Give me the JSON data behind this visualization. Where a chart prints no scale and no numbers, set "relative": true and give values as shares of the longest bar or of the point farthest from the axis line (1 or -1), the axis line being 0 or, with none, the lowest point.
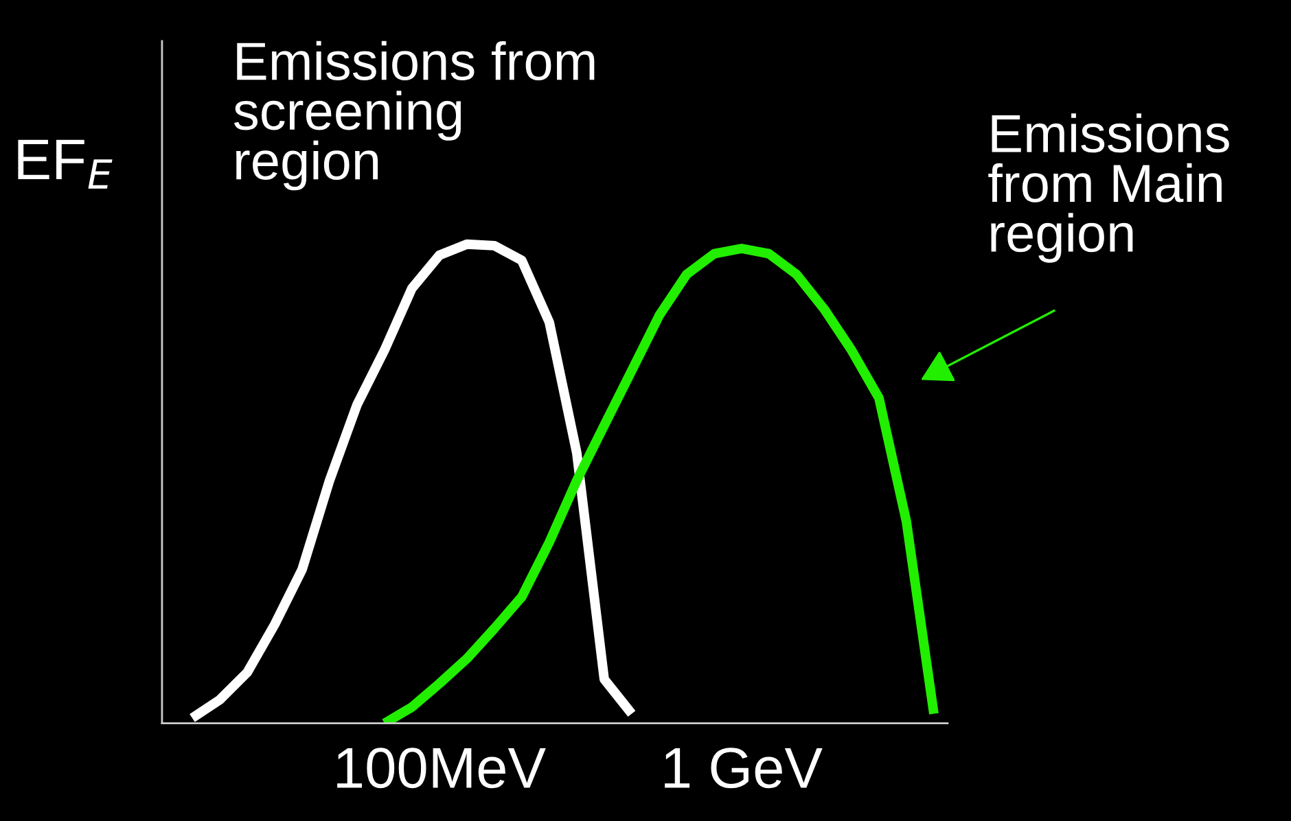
{
  "chart_data": {
    "type": "line",
    "relative": true,
    "ylabel": "EF$_{E}$",
    "tick_labels": "x",
    "grid": false,
    "legend": false,
    "marker": "none",
    "line_style": "solid",
    "categories": [
      null,
      null,
      null,
      null,
      null,
      null,
      null,
      null,
      null,
      "100MeV",
      null,
      null,
      null,
      null,
      null,
      null,
      null,
      null,
      null,
      null,
      "1 GeV",
      null,
      null,
      null,
      null,
      null,
      null,
      null
    ],
    "series": [
      {
        "color": "#ffffff",
        "values": [
          0.011,
          0.049,
          0.106,
          0.206,
          0.321,
          0.507,
          0.665,
          0.779,
          0.908,
          0.977,
          1,
          0.997,
          0.966,
          0.837,
          0.564,
          0.092,
          0.02,
          null,
          null,
          null,
          null,
          null,
          null,
          null,
          null,
          null,
          null,
          null
        ]
      },
      {
        "color": "#22ee00",
        "values": [
          null,
          null,
          null,
          null,
          null,
          null,
          null,
          0,
          0.034,
          0.083,
          0.135,
          0.198,
          0.264,
          0.378,
          0.507,
          0.622,
          0.736,
          0.851,
          0.937,
          0.98,
          0.991,
          0.98,
          0.937,
          0.865,
          0.779,
          0.679,
          0.421,
          0.02
        ]
      }
    ],
    "annotations": [
      "Emissions from\nscreening\nregion",
      "Emissions\nfrom Main\nregion"
    ]
  }
}
